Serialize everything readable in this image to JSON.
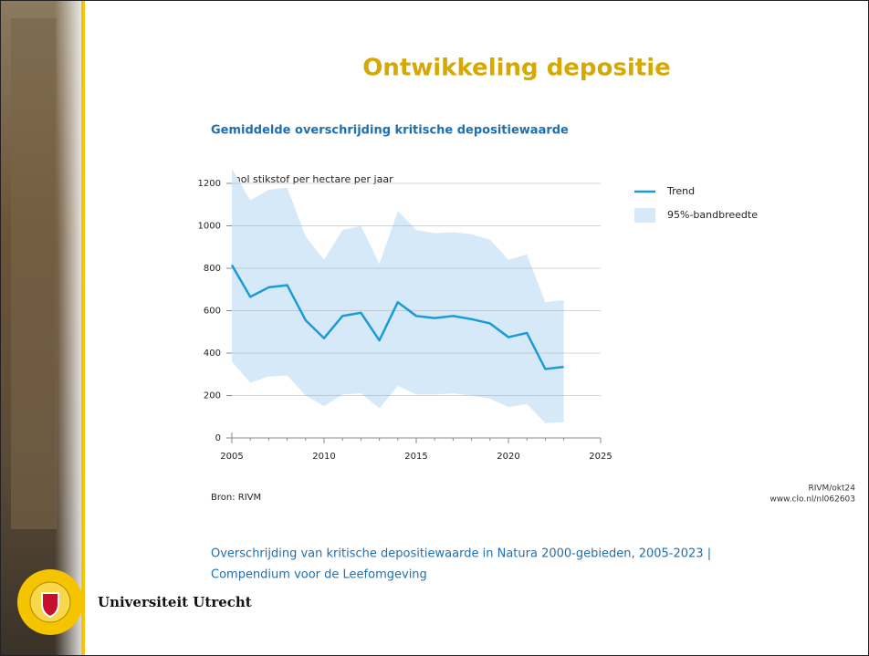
{
  "slide": {
    "title": "Ontwikkeling depositie",
    "source": "Bron: RIVM",
    "credit": [
      "RIVM/okt24",
      "www.clo.nl/nl062603"
    ],
    "caption": [
      "Overschrijding van kritische depositiewaarde in Natura 2000-gebieden,  2005-2023 |",
      "Compendium voor de Leefomgeving"
    ],
    "brand": "Universiteit Utrecht"
  },
  "chart_data": {
    "type": "line",
    "title": "Gemiddelde overschrijding kritische depositiewaarde",
    "y_label": "mol stikstof per hectare per jaar",
    "x": [
      2005,
      2006,
      2007,
      2008,
      2009,
      2010,
      2011,
      2012,
      2013,
      2014,
      2015,
      2016,
      2017,
      2018,
      2019,
      2020,
      2021,
      2022,
      2023
    ],
    "series": [
      {
        "name": "Trend",
        "color": "#1a9bd7",
        "values": [
          815,
          665,
          710,
          720,
          555,
          470,
          575,
          590,
          460,
          640,
          575,
          565,
          575,
          560,
          540,
          475,
          495,
          325,
          335
        ]
      },
      {
        "name": "95%-bandbreedte",
        "color": "#d6e9f8",
        "upper": [
          1270,
          1120,
          1170,
          1180,
          950,
          840,
          980,
          1000,
          820,
          1070,
          980,
          965,
          970,
          960,
          935,
          840,
          865,
          640,
          650
        ],
        "lower": [
          360,
          260,
          290,
          295,
          200,
          150,
          205,
          210,
          140,
          245,
          205,
          205,
          210,
          200,
          185,
          145,
          160,
          70,
          75
        ]
      }
    ],
    "xlim": [
      2005,
      2025
    ],
    "xticks": [
      2005,
      2010,
      2015,
      2020,
      2025
    ],
    "ylim": [
      0,
      1200
    ],
    "yticks": [
      0,
      200,
      400,
      600,
      800,
      1000,
      1200
    ],
    "grid": true
  }
}
